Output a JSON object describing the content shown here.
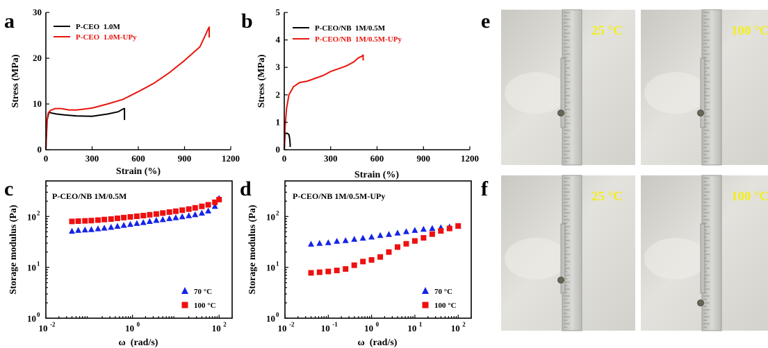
{
  "colors": {
    "black": "#000000",
    "red": "#e8140c",
    "blue": "#1524e6",
    "square_red": "#ee1010",
    "photo_label": "#f3ee1c"
  },
  "chart_data": [
    {
      "panel": "a",
      "type": "line",
      "xlabel": "Strain (%)",
      "ylabel": "Stress (MPa)",
      "xlim": [
        0,
        1200
      ],
      "ylim": [
        0,
        30
      ],
      "xticks": [
        "0",
        "300",
        "600",
        "900",
        "1200"
      ],
      "yticks": [
        "0",
        "10",
        "20",
        "30"
      ],
      "legend_position": "top-left",
      "series": [
        {
          "name": "P-CEO  1.0M",
          "color": "#000000",
          "x": [
            0,
            8,
            20,
            40,
            70,
            120,
            200,
            300,
            400,
            470,
            500,
            510,
            510
          ],
          "y": [
            0,
            6.5,
            8.2,
            8.0,
            7.8,
            7.6,
            7.4,
            7.3,
            7.8,
            8.3,
            8.9,
            9.0,
            6.5
          ]
        },
        {
          "name": "P-CEO  1.0M-UPy",
          "color": "#e8140c",
          "x": [
            0,
            6,
            15,
            30,
            60,
            100,
            150,
            200,
            300,
            400,
            500,
            600,
            700,
            800,
            900,
            1000,
            1055,
            1060,
            1060
          ],
          "y": [
            0,
            6.0,
            8.0,
            8.6,
            9.0,
            9.0,
            8.7,
            8.7,
            9.1,
            10.0,
            11.0,
            12.7,
            14.5,
            16.8,
            19.5,
            22.5,
            26.5,
            26.8,
            24.5
          ]
        }
      ]
    },
    {
      "panel": "b",
      "type": "line",
      "xlabel": "Strain (%)",
      "ylabel": "Stress (MPa)",
      "xlim": [
        0,
        1200
      ],
      "ylim": [
        0,
        5
      ],
      "xticks": [
        "0",
        "300",
        "600",
        "900",
        "1200"
      ],
      "yticks": [
        "0",
        "1",
        "2",
        "3",
        "4",
        "5"
      ],
      "legend_position": "top-left",
      "series": [
        {
          "name": "P-CEO/NB  1M/0.5M",
          "color": "#000000",
          "x": [
            0,
            5,
            10,
            20,
            30,
            35,
            38,
            38
          ],
          "y": [
            0,
            0.55,
            0.6,
            0.6,
            0.55,
            0.4,
            0.2,
            0.1
          ]
        },
        {
          "name": "P-CEO/NB  1M/0.5M-UPy",
          "color": "#e8140c",
          "x": [
            0,
            5,
            15,
            30,
            60,
            100,
            150,
            200,
            250,
            300,
            350,
            400,
            450,
            480,
            500,
            510,
            510
          ],
          "y": [
            0,
            0.8,
            1.5,
            2.0,
            2.3,
            2.45,
            2.5,
            2.6,
            2.7,
            2.85,
            2.95,
            3.05,
            3.2,
            3.35,
            3.4,
            3.45,
            3.25
          ]
        }
      ]
    },
    {
      "panel": "c",
      "type": "scatter",
      "title": "P-CEO/NB 1M/0.5M",
      "xlabel": "ω  (rad/s)",
      "ylabel": "Storage modulus (Pa)",
      "xscale": "log",
      "yscale": "log",
      "xlim": [
        0.01,
        200
      ],
      "ylim": [
        1,
        500
      ],
      "legend_position": "bottom-right",
      "series": [
        {
          "name": "70 °C",
          "marker": "triangle",
          "color": "#1524e6",
          "x": [
            0.04,
            0.056,
            0.08,
            0.112,
            0.16,
            0.224,
            0.32,
            0.45,
            0.63,
            0.89,
            1.26,
            1.78,
            2.5,
            3.55,
            5.0,
            7.1,
            10,
            14.1,
            20,
            28,
            40,
            56,
            80,
            100
          ],
          "y": [
            52,
            54,
            55,
            56,
            58,
            60,
            62,
            65,
            68,
            71,
            74,
            77,
            81,
            85,
            88,
            92,
            96,
            100,
            105,
            110,
            118,
            130,
            160,
            230
          ]
        },
        {
          "name": "100 °C",
          "marker": "square",
          "color": "#ee1010",
          "x": [
            0.04,
            0.056,
            0.08,
            0.112,
            0.16,
            0.224,
            0.32,
            0.45,
            0.63,
            0.89,
            1.26,
            1.78,
            2.5,
            3.55,
            5.0,
            7.1,
            10,
            14.1,
            20,
            28,
            40,
            56,
            80,
            100
          ],
          "y": [
            80,
            81,
            82,
            83,
            85,
            87,
            89,
            92,
            95,
            98,
            101,
            104,
            108,
            112,
            117,
            122,
            127,
            133,
            140,
            148,
            158,
            170,
            190,
            215
          ]
        }
      ]
    },
    {
      "panel": "d",
      "type": "scatter",
      "title": "P-CEO/NB 1M/0.5M-UPy",
      "xlabel": "ω  (rad/s)",
      "ylabel": "Storage modulus (Pa)",
      "xscale": "log",
      "yscale": "log",
      "xlim": [
        0.01,
        200
      ],
      "ylim": [
        1,
        500
      ],
      "legend_position": "bottom-right",
      "series": [
        {
          "name": "70 °C",
          "marker": "triangle",
          "color": "#1524e6",
          "x": [
            0.04,
            0.063,
            0.1,
            0.158,
            0.251,
            0.398,
            0.631,
            1.0,
            1.585,
            2.512,
            3.981,
            6.31,
            10,
            15.85,
            25.12,
            39.81,
            63.1,
            100
          ],
          "y": [
            29,
            30,
            31,
            33,
            34,
            36,
            38,
            40,
            43,
            45,
            48,
            51,
            54,
            57,
            59,
            61,
            63,
            65
          ]
        },
        {
          "name": "100 °C",
          "marker": "square",
          "color": "#ee1010",
          "x": [
            0.04,
            0.063,
            0.1,
            0.158,
            0.251,
            0.398,
            0.631,
            1.0,
            1.585,
            2.512,
            3.981,
            6.31,
            10,
            15.85,
            25.12,
            39.81,
            63.1,
            100
          ],
          "y": [
            7.8,
            8.0,
            8.3,
            8.7,
            9.3,
            11,
            13,
            14,
            16,
            20,
            25,
            29,
            33,
            38,
            45,
            52,
            58,
            65
          ]
        }
      ]
    }
  ],
  "photos": {
    "row_e": {
      "letter": "e",
      "left_label": "25 °C",
      "right_label": "100 °C"
    },
    "row_f": {
      "letter": "f",
      "left_label": "25 °C",
      "right_label": "100 °C"
    }
  }
}
